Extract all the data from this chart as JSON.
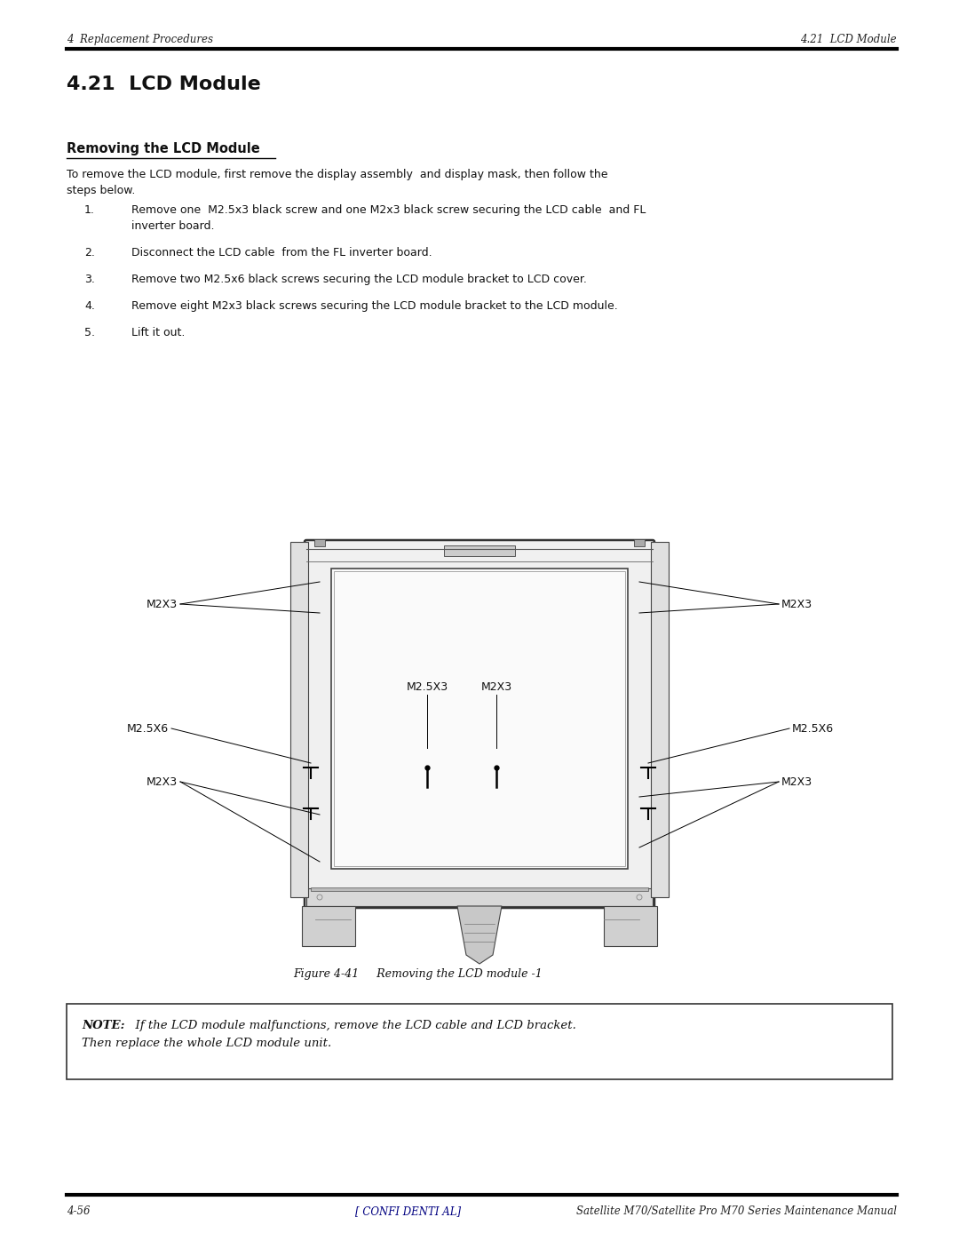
{
  "page_width": 10.8,
  "page_height": 13.97,
  "bg_color": "#ffffff",
  "header_left": "4  Replacement Procedures",
  "header_right": "4.21  LCD Module",
  "section_title": "4.21  LCD Module",
  "subsection_title": "Removing the LCD Module",
  "intro_text": "To remove the LCD module, first remove the display assembly  and display mask, then follow the\nsteps below.",
  "steps": [
    "Remove one  M2.5x3 black screw and one M2x3 black screw securing the LCD cable  and FL\ninverter board.",
    "Disconnect the LCD cable  from the FL inverter board.",
    "Remove two M2.5x6 black screws securing the LCD module bracket to LCD cover.",
    "Remove eight M2x3 black screws securing the LCD module bracket to the LCD module.",
    "Lift it out."
  ],
  "figure_caption": "Figure 4-41     Removing the LCD module -1",
  "note_bold": "NOTE:",
  "note_text": "  If the LCD module malfunctions, remove the LCD cable and LCD bracket.\nThen replace the whole LCD module unit.",
  "footer_left": "4-56",
  "footer_center": "[ CONFI DENTI AL]",
  "footer_right": "Satellite M70/Satellite Pro M70 Series Maintenance Manual",
  "footer_center_color": "#000080"
}
